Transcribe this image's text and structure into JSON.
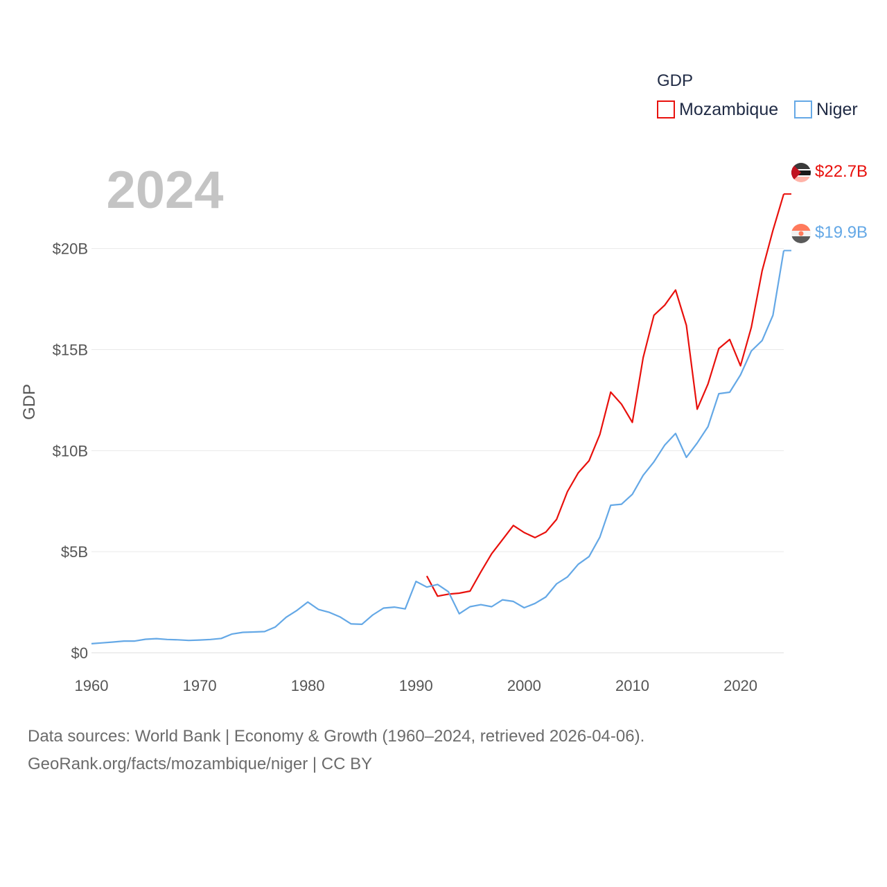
{
  "chart_data": {
    "type": "line",
    "ylabel": "GDP",
    "year_label": "2024",
    "legend": {
      "title": "GDP",
      "position": "top-right"
    },
    "xlim": [
      1960,
      2024
    ],
    "ylim": [
      0,
      24
    ],
    "unit": "billion USD",
    "x_ticks": [
      {
        "value": 1960,
        "label": "1960"
      },
      {
        "value": 1970,
        "label": "1970"
      },
      {
        "value": 1980,
        "label": "1980"
      },
      {
        "value": 1990,
        "label": "1990"
      },
      {
        "value": 2000,
        "label": "2000"
      },
      {
        "value": 2010,
        "label": "2010"
      },
      {
        "value": 2020,
        "label": "2020"
      }
    ],
    "y_ticks": [
      {
        "value": 0,
        "label": "$0"
      },
      {
        "value": 5,
        "label": "$5B"
      },
      {
        "value": 10,
        "label": "$10B"
      },
      {
        "value": 15,
        "label": "$15B"
      },
      {
        "value": 20,
        "label": "$20B"
      }
    ],
    "series": [
      {
        "name": "Mozambique",
        "color": "#e8100c",
        "end_label": "$22.7B",
        "flag_icon": "mozambique-flag-icon",
        "start_year": 1991,
        "values": [
          3.8,
          2.8,
          2.9,
          2.95,
          3.05,
          4.0,
          4.9,
          5.6,
          6.3,
          5.95,
          5.7,
          5.97,
          6.6,
          7.97,
          8.9,
          9.5,
          10.8,
          12.9,
          12.3,
          11.4,
          14.6,
          16.7,
          17.2,
          17.95,
          16.2,
          12.05,
          13.3,
          15.05,
          15.5,
          14.2,
          16.1,
          18.9,
          20.9,
          22.7
        ]
      },
      {
        "name": "Niger",
        "color": "#64a8e6",
        "end_label": "$19.9B",
        "flag_icon": "niger-flag-icon",
        "start_year": 1960,
        "values": [
          0.45,
          0.49,
          0.53,
          0.58,
          0.58,
          0.67,
          0.7,
          0.66,
          0.64,
          0.61,
          0.63,
          0.66,
          0.71,
          0.93,
          1.01,
          1.03,
          1.05,
          1.28,
          1.76,
          2.1,
          2.51,
          2.14,
          2.0,
          1.77,
          1.43,
          1.41,
          1.87,
          2.21,
          2.26,
          2.17,
          3.53,
          3.25,
          3.38,
          3.02,
          1.93,
          2.28,
          2.38,
          2.28,
          2.62,
          2.54,
          2.23,
          2.44,
          2.76,
          3.41,
          3.75,
          4.38,
          4.76,
          5.72,
          7.3,
          7.35,
          7.84,
          8.78,
          9.45,
          10.28,
          10.85,
          9.67,
          10.38,
          11.19,
          12.82,
          12.89,
          13.75,
          14.93,
          15.45,
          16.7,
          19.9
        ]
      }
    ]
  },
  "source": {
    "line1": "Data sources: World Bank | Economy & Growth (1960–2024, retrieved 2026-04-06).",
    "line2": "GeoRank.org/facts/mozambique/niger | CC BY"
  }
}
